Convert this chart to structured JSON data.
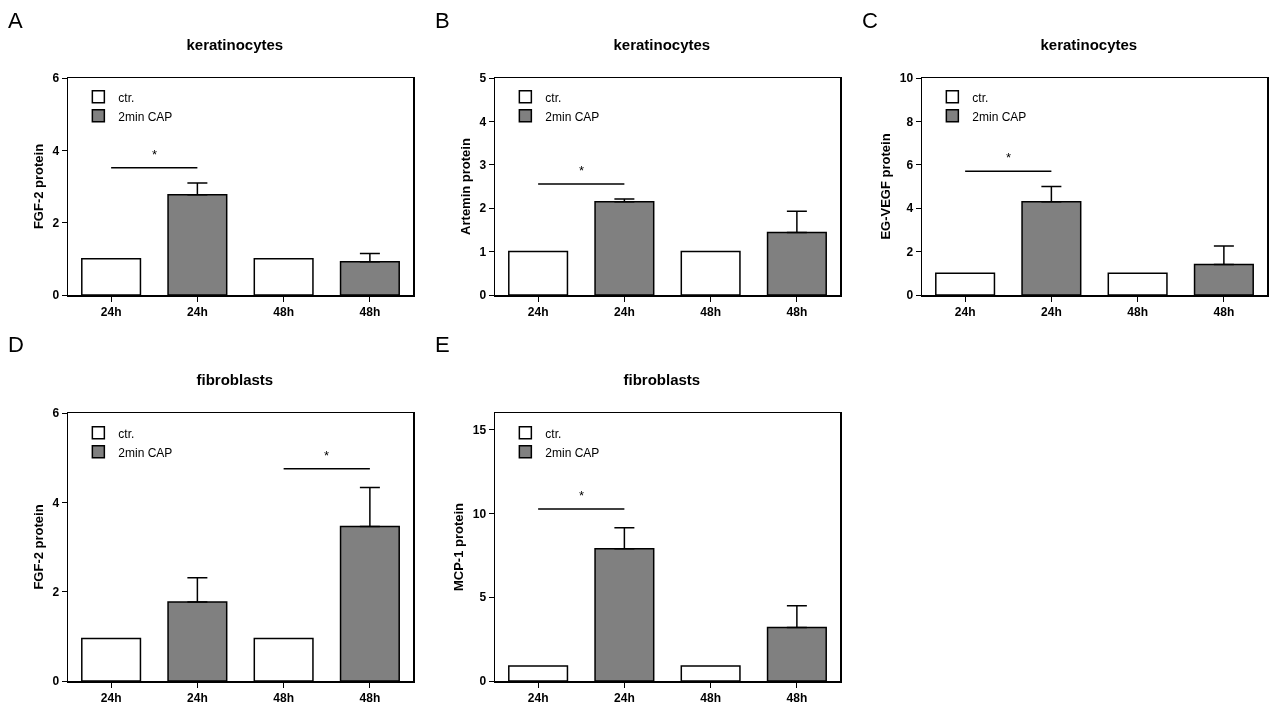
{
  "chart_data": [
    {
      "type": "bar",
      "title": "keratinocytes",
      "ylabel": "FGF-2 protein",
      "categories": [
        "24h",
        "24h",
        "48h",
        "48h"
      ],
      "series": [
        {
          "name": "ctr.",
          "color": "#ffffff",
          "values": [
            1,
            null,
            1,
            null
          ]
        },
        {
          "name": "2min CAP",
          "color": "#808080",
          "values": [
            null,
            2.77,
            null,
            0.92
          ],
          "errors": [
            null,
            [
              2.77,
              3.1
            ],
            null,
            [
              0.92,
              1.15
            ]
          ]
        }
      ],
      "ylim": [
        0,
        6
      ],
      "yticks": [
        0,
        2,
        4,
        6
      ],
      "legend": "top left",
      "grid": false,
      "annotations": [
        "A",
        "*"
      ]
    },
    {
      "type": "bar",
      "title": "keratinocytes",
      "ylabel": "Artemin protein",
      "categories": [
        "24h",
        "24h",
        "48h",
        "48h"
      ],
      "series": [
        {
          "name": "ctr.",
          "color": "#ffffff",
          "values": [
            1,
            null,
            1,
            null
          ]
        },
        {
          "name": "2min CAP",
          "color": "#808080",
          "values": [
            null,
            2.15,
            null,
            1.44
          ],
          "errors": [
            null,
            [
              2.15,
              2.21
            ],
            null,
            [
              1.44,
              1.93
            ]
          ]
        }
      ],
      "ylim": [
        0,
        5
      ],
      "yticks": [
        0,
        1,
        2,
        3,
        4,
        5
      ],
      "legend": "top left",
      "grid": false,
      "annotations": [
        "B",
        "*"
      ]
    },
    {
      "type": "bar",
      "title": "keratinocytes",
      "ylabel": "EG-VEGF protein",
      "categories": [
        "24h",
        "24h",
        "48h",
        "48h"
      ],
      "series": [
        {
          "name": "ctr.",
          "color": "#ffffff",
          "values": [
            1,
            null,
            1,
            null
          ]
        },
        {
          "name": "2min CAP",
          "color": "#808080",
          "values": [
            null,
            4.3,
            null,
            1.4
          ],
          "errors": [
            null,
            [
              4.3,
              5
            ],
            null,
            [
              1.4,
              2.26
            ]
          ]
        }
      ],
      "ylim": [
        0,
        10
      ],
      "yticks": [
        0,
        2,
        4,
        6,
        8,
        10
      ],
      "legend": "top left",
      "grid": false,
      "annotations": [
        "C",
        "*"
      ]
    },
    {
      "type": "bar",
      "title": "fibroblasts",
      "ylabel": "FGF-2 protein",
      "categories": [
        "24h",
        "24h",
        "48h",
        "48h"
      ],
      "series": [
        {
          "name": "ctr.",
          "color": "#ffffff",
          "values": [
            0.95,
            null,
            0.95,
            null
          ]
        },
        {
          "name": "2min CAP",
          "color": "#808080",
          "values": [
            null,
            1.77,
            null,
            3.46
          ],
          "errors": [
            null,
            [
              1.77,
              2.31
            ],
            null,
            [
              3.46,
              4.33
            ]
          ]
        }
      ],
      "ylim": [
        0,
        6
      ],
      "yticks": [
        0,
        2,
        4,
        6
      ],
      "legend": "top left",
      "grid": false,
      "annotations": [
        "D",
        "*"
      ]
    },
    {
      "type": "bar",
      "title": "fibroblasts",
      "ylabel": "MCP-1 protein",
      "categories": [
        "24h",
        "24h",
        "48h",
        "48h"
      ],
      "series": [
        {
          "name": "ctr.",
          "color": "#ffffff",
          "values": [
            0.9,
            null,
            0.9,
            null
          ]
        },
        {
          "name": "2min CAP",
          "color": "#808080",
          "values": [
            null,
            7.9,
            null,
            3.2
          ],
          "errors": [
            null,
            [
              7.9,
              9.15
            ],
            null,
            [
              3.2,
              4.5
            ]
          ]
        }
      ],
      "ylim": [
        0,
        16
      ],
      "yticks": [
        0,
        5,
        10,
        15
      ],
      "legend": "top left",
      "grid": false,
      "annotations": [
        "E",
        "*"
      ]
    }
  ]
}
